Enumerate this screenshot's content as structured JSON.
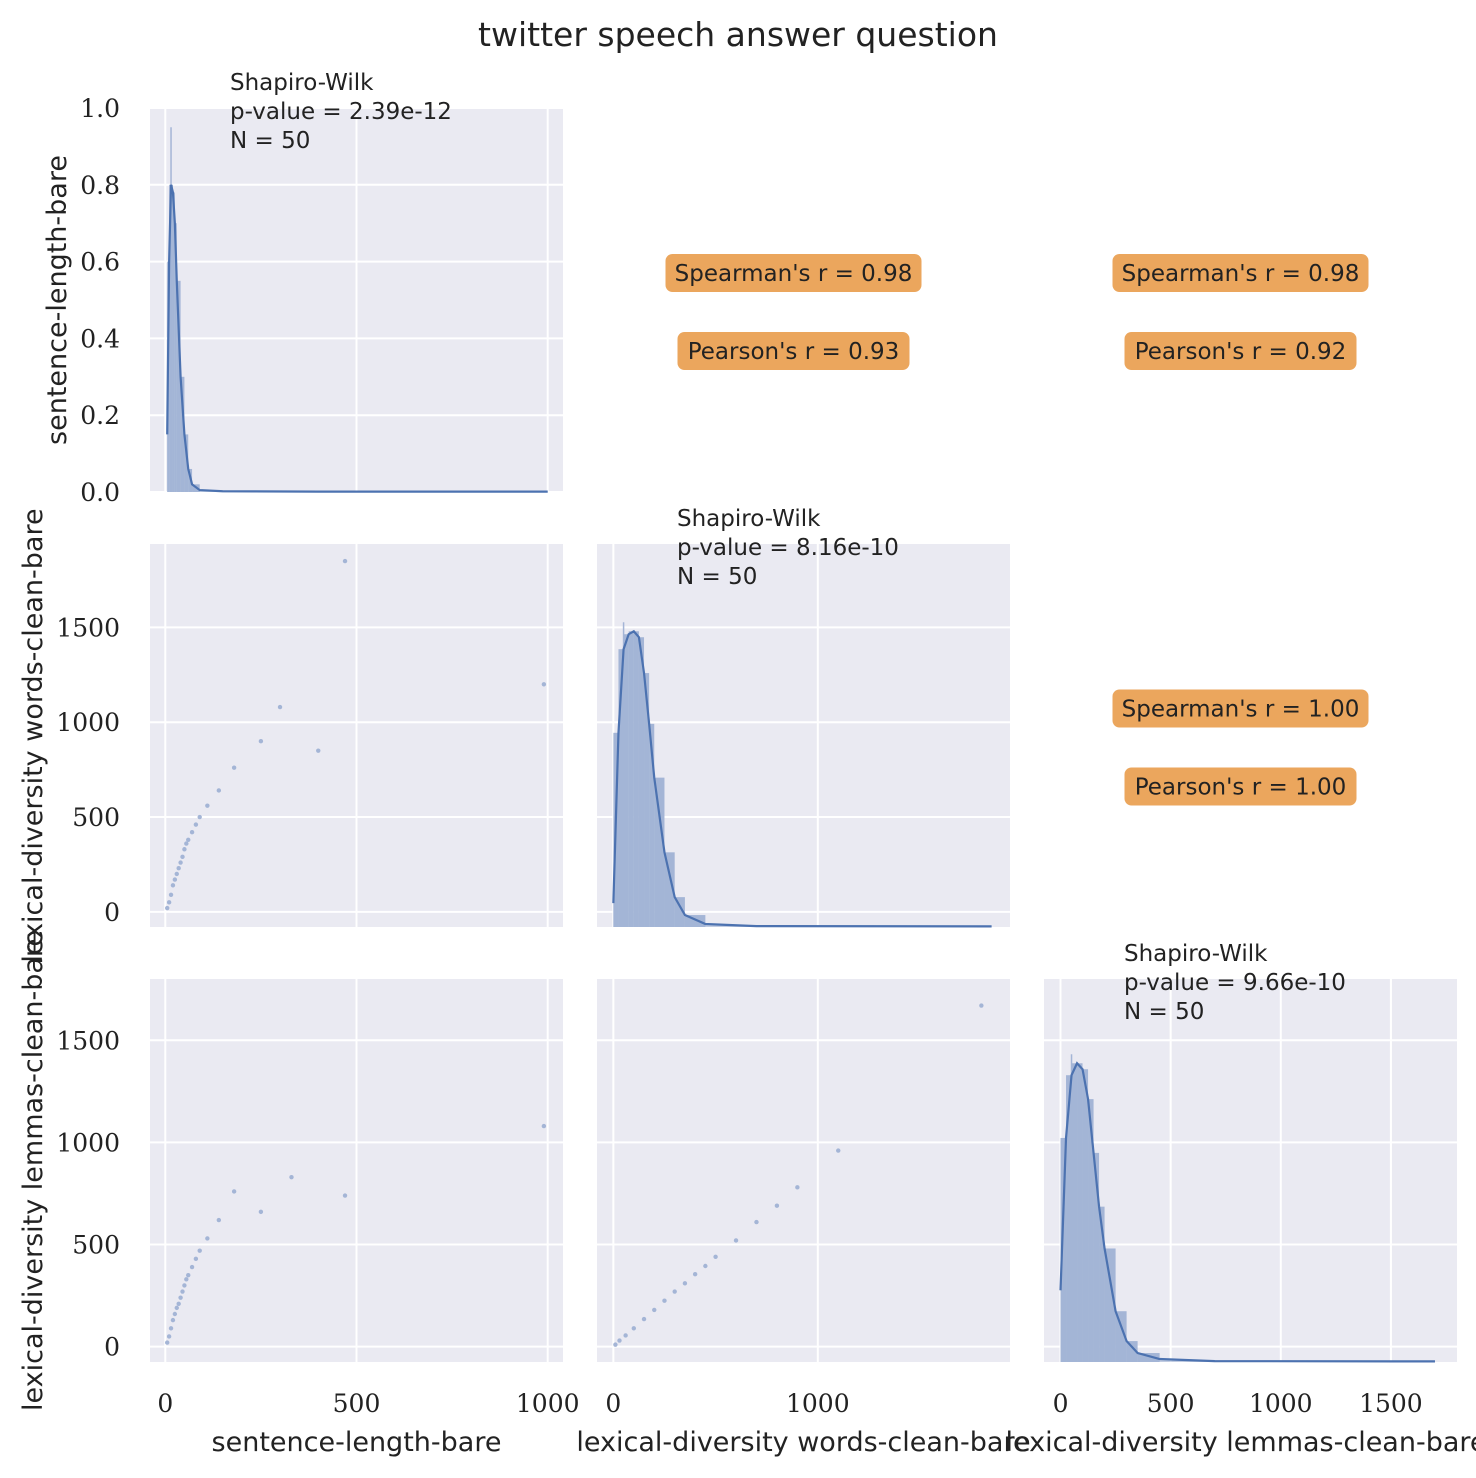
{
  "figure": {
    "title": "twitter speech answer question",
    "colors": {
      "panel_bg": "#eaeaf2",
      "grid": "#ffffff",
      "series": "#4c72b0",
      "series_fill": "#a4b5d6",
      "badge": "#eba65d",
      "text": "#222222"
    }
  },
  "chart_data": {
    "type": "scatter",
    "kind": "pairplot",
    "variables": [
      "sentence-length-bare",
      "lexical-diversity words-clean-bare",
      "lexical-diversity lemmas-clean-bare"
    ],
    "axes": {
      "x": [
        {
          "label": "sentence-length-bare",
          "ticks": [
            "0",
            "500",
            "1000"
          ],
          "range": [
            -40,
            1040
          ]
        },
        {
          "label": "lexical-diversity words-clean-bare",
          "ticks": [
            "0",
            "1000"
          ],
          "range": [
            -80,
            1940
          ]
        },
        {
          "label": "lexical-diversity lemmas-clean-bare",
          "ticks": [
            "0",
            "500",
            "1000",
            "1500"
          ],
          "range": [
            -75,
            1800
          ]
        }
      ],
      "y": [
        {
          "label": "sentence-length-bare",
          "ticks": [
            "0.0",
            "0.2",
            "0.4",
            "0.6",
            "0.8",
            "1.0"
          ],
          "range": [
            0,
            1.0
          ]
        },
        {
          "label": "lexical-diversity words-clean-bare",
          "ticks": [
            "0",
            "500",
            "1000",
            "1500"
          ],
          "range": [
            -80,
            1940
          ]
        },
        {
          "label": "lexical-diversity lemmas-clean-bare",
          "ticks": [
            "0",
            "500",
            "1000",
            "1500"
          ],
          "range": [
            -75,
            1800
          ]
        }
      ]
    },
    "grid": true,
    "diagonal": [
      {
        "test_name": "Shapiro-Wilk",
        "p_value_text": "p-value = 2.39e-12",
        "n_text": "N = 50",
        "kde": [
          [
            5,
            0.15
          ],
          [
            10,
            0.6
          ],
          [
            15,
            0.8
          ],
          [
            20,
            0.78
          ],
          [
            25,
            0.7
          ],
          [
            30,
            0.55
          ],
          [
            40,
            0.3
          ],
          [
            50,
            0.15
          ],
          [
            60,
            0.06
          ],
          [
            70,
            0.02
          ],
          [
            90,
            0.005
          ],
          [
            150,
            0.002
          ],
          [
            400,
            0.001
          ],
          [
            1000,
            0.001
          ]
        ],
        "hist_peak": 0.95
      },
      {
        "test_name": "Shapiro-Wilk",
        "p_value_text": "p-value = 8.16e-10",
        "n_text": "N = 50",
        "kde": [
          [
            0,
            0.08
          ],
          [
            25,
            0.65
          ],
          [
            50,
            0.93
          ],
          [
            75,
            0.98
          ],
          [
            100,
            0.99
          ],
          [
            125,
            0.97
          ],
          [
            150,
            0.85
          ],
          [
            175,
            0.68
          ],
          [
            200,
            0.5
          ],
          [
            250,
            0.25
          ],
          [
            300,
            0.1
          ],
          [
            350,
            0.04
          ],
          [
            450,
            0.01
          ],
          [
            700,
            0.003
          ],
          [
            1850,
            0.002
          ]
        ],
        "hist_peak": 1.02
      },
      {
        "test_name": "Shapiro-Wilk",
        "p_value_text": "p-value = 9.66e-10",
        "n_text": "N = 50",
        "kde": [
          [
            0,
            0.24
          ],
          [
            25,
            0.75
          ],
          [
            50,
            0.96
          ],
          [
            75,
            1.0
          ],
          [
            100,
            0.98
          ],
          [
            125,
            0.88
          ],
          [
            150,
            0.7
          ],
          [
            175,
            0.52
          ],
          [
            200,
            0.38
          ],
          [
            250,
            0.17
          ],
          [
            300,
            0.07
          ],
          [
            350,
            0.03
          ],
          [
            450,
            0.01
          ],
          [
            700,
            0.003
          ],
          [
            1700,
            0.002
          ]
        ],
        "hist_peak": 1.03
      }
    ],
    "correlations": [
      {
        "row": 0,
        "col": 1,
        "spearman": "Spearman's r = 0.98",
        "pearson": "Pearson's r = 0.93"
      },
      {
        "row": 0,
        "col": 2,
        "spearman": "Spearman's r = 0.98",
        "pearson": "Pearson's r = 0.92"
      },
      {
        "row": 1,
        "col": 2,
        "spearman": "Spearman's r = 1.00",
        "pearson": "Pearson's r = 1.00"
      }
    ],
    "scatter_pairs": [
      {
        "row": 1,
        "col": 0,
        "x": [
          5,
          10,
          15,
          20,
          25,
          30,
          35,
          40,
          45,
          50,
          55,
          60,
          70,
          80,
          90,
          110,
          140,
          180,
          250,
          300,
          400,
          470,
          990
        ],
        "y": [
          20,
          50,
          90,
          140,
          170,
          200,
          230,
          260,
          290,
          330,
          360,
          380,
          420,
          460,
          500,
          560,
          640,
          760,
          900,
          1080,
          850,
          1850,
          1200
        ]
      },
      {
        "row": 2,
        "col": 0,
        "x": [
          5,
          10,
          15,
          20,
          25,
          30,
          35,
          40,
          45,
          50,
          55,
          60,
          70,
          80,
          90,
          110,
          140,
          180,
          250,
          330,
          470,
          990
        ],
        "y": [
          20,
          50,
          90,
          130,
          160,
          190,
          210,
          240,
          270,
          300,
          330,
          350,
          390,
          430,
          470,
          530,
          620,
          760,
          660,
          830,
          740,
          1080
        ]
      },
      {
        "row": 2,
        "col": 1,
        "x": [
          10,
          30,
          60,
          100,
          150,
          200,
          250,
          300,
          350,
          400,
          450,
          500,
          600,
          700,
          800,
          900,
          1100,
          1800
        ],
        "y": [
          10,
          30,
          55,
          90,
          135,
          180,
          225,
          270,
          310,
          355,
          395,
          440,
          520,
          610,
          690,
          780,
          960,
          1670
        ]
      }
    ]
  }
}
